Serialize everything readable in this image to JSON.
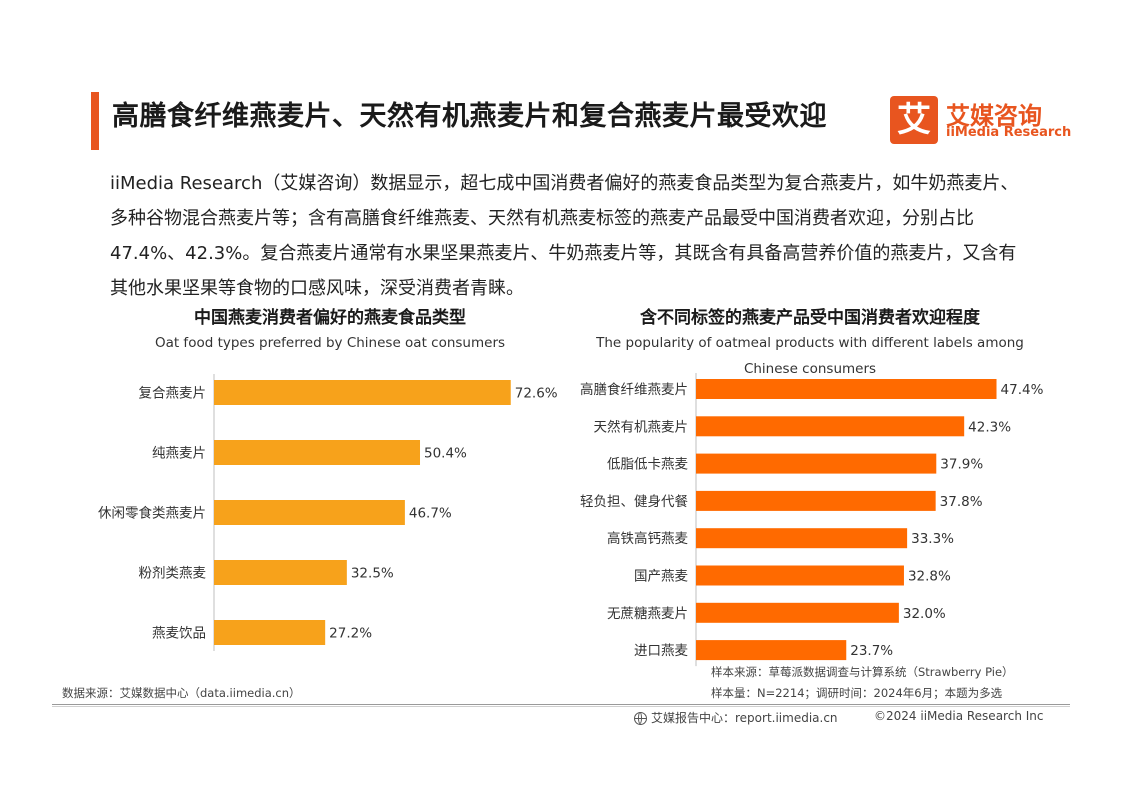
{
  "header": {
    "title": "高膳食纤维燕麦片、天然有机燕麦片和复合燕麦片最受欢迎",
    "logo_mark": "艾",
    "logo_cn": "艾媒咨询",
    "logo_en": "iiMedia Research",
    "accent_color": "#e8551f"
  },
  "intro": "iiMedia Research（艾媒咨询）数据显示，超七成中国消费者偏好的燕麦食品类型为复合燕麦片，如牛奶燕麦片、多种谷物混合燕麦片等；含有高膳食纤维燕麦、天然有机燕麦标签的燕麦产品最受中国消费者欢迎，分别占比47.4%、42.3%。复合燕麦片通常有水果坚果燕麦片、牛奶燕麦片等，其既含有具备高营养价值的燕麦片，又含有其他水果坚果等食物的口感风味，深受消费者青睐。",
  "chart_data": [
    {
      "type": "bar",
      "orientation": "horizontal",
      "title": "中国燕麦消费者偏好的燕麦食品类型",
      "subtitle": "Oat food types preferred by Chinese oat consumers",
      "categories": [
        "复合燕麦片",
        "纯燕麦片",
        "休闲零食类燕麦片",
        "粉剂类燕麦",
        "燕麦饮品"
      ],
      "values": [
        72.6,
        50.4,
        46.7,
        32.5,
        27.2
      ],
      "value_labels": [
        "72.6%",
        "50.4%",
        "46.7%",
        "32.5%",
        "27.2%"
      ],
      "unit": "%",
      "xlim": [
        0,
        80
      ],
      "grid": false,
      "color": "#f7a21b"
    },
    {
      "type": "bar",
      "orientation": "horizontal",
      "title": "含不同标签的燕麦产品受中国消费者欢迎程度",
      "subtitle": "The popularity of oatmeal products with different labels among Chinese consumers",
      "categories": [
        "高膳食纤维燕麦片",
        "天然有机燕麦片",
        "低脂低卡燕麦",
        "轻负担、健身代餐",
        "高铁高钙燕麦",
        "国产燕麦",
        "无蔗糖燕麦片",
        "进口燕麦"
      ],
      "values": [
        47.4,
        42.3,
        37.9,
        37.8,
        33.3,
        32.8,
        32.0,
        23.7
      ],
      "value_labels": [
        "47.4%",
        "42.3%",
        "37.9%",
        "37.8%",
        "33.3%",
        "32.8%",
        "32.0%",
        "23.7%"
      ],
      "unit": "%",
      "xlim": [
        0,
        50
      ],
      "grid": false,
      "color": "#ff6a00"
    }
  ],
  "notes": {
    "left_source": "数据来源：艾媒数据中心（data.iimedia.cn）",
    "right_sample_source": "样本来源：草莓派数据调查与计算系统（Strawberry Pie）",
    "right_sample_size": "样本量：N=2214；调研时间：2024年6月；本题为多选"
  },
  "footer": {
    "report_center": "艾媒报告中心：report.iimedia.cn",
    "copyright": "©2024  iiMedia Research Inc"
  }
}
